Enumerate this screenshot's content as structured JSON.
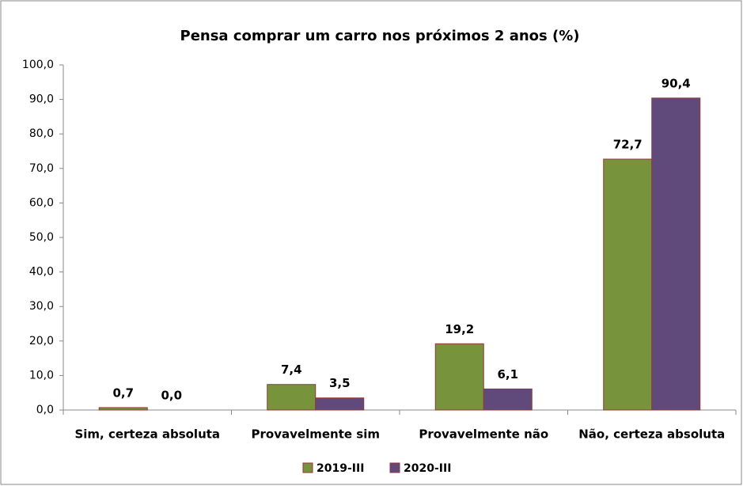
{
  "chart_data": {
    "type": "bar",
    "title": "Pensa comprar um carro nos próximos 2 anos (%)",
    "categories": [
      "Sim, certeza absoluta",
      "Provavelmente sim",
      "Provavelmente não",
      "Não, certeza absoluta"
    ],
    "series": [
      {
        "name": "2019-III",
        "color": "#77933c",
        "values": [
          0.7,
          7.4,
          19.2,
          72.7
        ],
        "value_labels": [
          "0,7",
          "7,4",
          "19,2",
          "72,7"
        ]
      },
      {
        "name": "2020-III",
        "color": "#604a7b",
        "values": [
          0.0,
          3.5,
          6.1,
          90.4
        ],
        "value_labels": [
          "0,0",
          "3,5",
          "6,1",
          "90,4"
        ]
      }
    ],
    "ylim": [
      0,
      100
    ],
    "yticks": [
      {
        "value": 0,
        "label": "0,0"
      },
      {
        "value": 10,
        "label": "10,0"
      },
      {
        "value": 20,
        "label": "20,0"
      },
      {
        "value": 30,
        "label": "30,0"
      },
      {
        "value": 40,
        "label": "40,0"
      },
      {
        "value": 50,
        "label": "50,0"
      },
      {
        "value": 60,
        "label": "60,0"
      },
      {
        "value": 70,
        "label": "70,0"
      },
      {
        "value": 80,
        "label": "80,0"
      },
      {
        "value": 90,
        "label": "90,0"
      },
      {
        "value": 100,
        "label": "100,0"
      }
    ],
    "grid": false
  }
}
